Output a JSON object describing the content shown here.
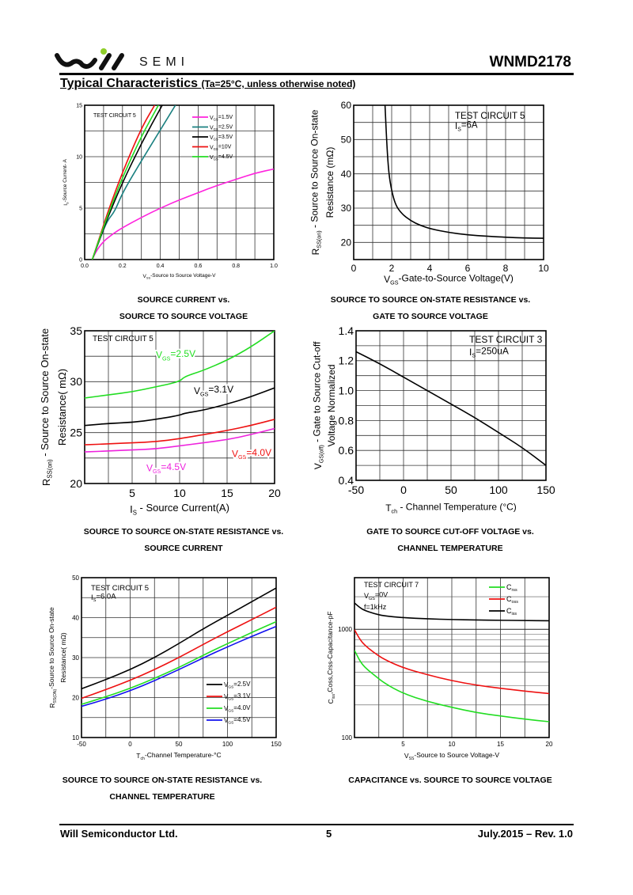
{
  "header": {
    "brand": "SEMI",
    "part_number": "WNMD2178",
    "section_title": "Typical Characteristics",
    "section_condition": "(Ta=25°C, unless otherwise noted)"
  },
  "captions": [
    [
      "SOURCE CURRENT vs.",
      "SOURCE TO SOURCE VOLTAGE"
    ],
    [
      "SOURCE TO SOURCE ON-STATE RESISTANCE vs.",
      "GATE TO SOURCE VOLTAGE"
    ],
    [
      "SOURCE TO SOURCE ON-STATE RESISTANCE vs.",
      "SOURCE CURRENT"
    ],
    [
      "GATE TO SOURCE CUT-OFF VOLTAGE vs.",
      "CHANNEL TEMPERATURE"
    ],
    [
      "SOURCE TO SOURCE ON-STATE RESISTANCE vs.",
      "CHANNEL TEMPERATURE"
    ],
    [
      "CAPACITANCE vs. SOURCE TO SOURCE VOLTAGE",
      ""
    ]
  ],
  "footer": {
    "company": "Will Semiconductor Ltd.",
    "page": "5",
    "revision": "July.2015 – Rev. 1.0"
  },
  "chart_data": [
    {
      "type": "line",
      "title": "",
      "xlabel": "VSS-Source to Source Voltage-V",
      "ylabel": "IS-Source Current- A",
      "xlim": [
        0,
        1.0
      ],
      "ylim": [
        0,
        15
      ],
      "xticks": [
        "0.0",
        "0.2",
        "0.4",
        "0.6",
        "0.8",
        "1.0"
      ],
      "yticks": [
        "0",
        "5",
        "10",
        "15"
      ],
      "grid": true,
      "annotation": "TEST CIRCUIT 5",
      "legend_position": "top-right",
      "series": [
        {
          "name": "VGS=1.5V",
          "color": "#ff22dd",
          "x": [
            0.04,
            0.06,
            0.1,
            0.15,
            0.2,
            0.3,
            0.4,
            0.5,
            0.6,
            0.7,
            0.8,
            0.9,
            1.0
          ],
          "y": [
            0,
            0.8,
            1.8,
            2.5,
            3.1,
            4.1,
            5.0,
            5.8,
            6.5,
            7.2,
            7.8,
            8.4,
            8.8
          ]
        },
        {
          "name": "VGS=2.5V",
          "color": "#1a8080",
          "x": [
            0.04,
            0.08,
            0.12,
            0.16,
            0.2,
            0.3,
            0.4,
            0.48
          ],
          "y": [
            0,
            2.0,
            3.8,
            4.7,
            6.5,
            9.6,
            12.6,
            15
          ]
        },
        {
          "name": "VGS=3.5V",
          "color": "#000000",
          "x": [
            0.04,
            0.08,
            0.12,
            0.2,
            0.3,
            0.41
          ],
          "y": [
            0,
            2.0,
            4.0,
            7.5,
            11.3,
            15
          ]
        },
        {
          "name": "VGS=10V",
          "color": "#ee1111",
          "x": [
            0.04,
            0.08,
            0.12,
            0.2,
            0.3,
            0.37
          ],
          "y": [
            0,
            2.2,
            4.5,
            8.5,
            12.8,
            15
          ]
        },
        {
          "name": "VGS=4.5V",
          "color": "#22dd22",
          "x": [
            0.04,
            0.08,
            0.12,
            0.2,
            0.3,
            0.39
          ],
          "y": [
            0,
            2.1,
            4.2,
            8.0,
            12.0,
            15
          ]
        }
      ]
    },
    {
      "type": "line",
      "title": "",
      "xlabel": "VGS-Gate-to-Source Voltage(V)",
      "ylabel": "RSS(on) - Source to Source On-state Resistance (mΩ)",
      "xlim": [
        0,
        10
      ],
      "ylim": [
        15,
        60
      ],
      "xticks": [
        "0",
        "2",
        "4",
        "6",
        "8",
        "10"
      ],
      "yticks": [
        "20",
        "30",
        "40",
        "50",
        "60"
      ],
      "grid": true,
      "annotation": [
        "TEST CIRCUIT 5",
        "IS=6A"
      ],
      "series": [
        {
          "name": "RSS(on)",
          "color": "#000000",
          "x": [
            1.65,
            1.75,
            1.85,
            2.0,
            2.2,
            2.5,
            3.0,
            3.5,
            4,
            5,
            6,
            7,
            8,
            9,
            10
          ],
          "y": [
            60,
            48,
            40,
            35,
            31,
            28.5,
            26.3,
            25,
            24,
            22.9,
            22.2,
            21.8,
            21.5,
            21.3,
            21.2
          ]
        }
      ]
    },
    {
      "type": "line",
      "title": "",
      "xlabel": "IS - Source Current(A)",
      "ylabel": "RSS(on) - Source to Source On-state Resistance( mΩ)",
      "xlim": [
        0,
        20
      ],
      "ylim": [
        20,
        35
      ],
      "xticks": [
        "5",
        "10",
        "15",
        "20"
      ],
      "yticks": [
        "20",
        "25",
        "30",
        "35"
      ],
      "grid": true,
      "annotation": "TEST CIRCUIT 5",
      "series": [
        {
          "name": "VGS=2.5V",
          "color": "#22dd22",
          "x": [
            0,
            2.5,
            5,
            7.5,
            10,
            10.5,
            12.5,
            15,
            17.5,
            20
          ],
          "y": [
            28.4,
            28.7,
            29.0,
            29.5,
            30.0,
            30.5,
            31.1,
            32.1,
            33.4,
            35.0
          ]
        },
        {
          "name": "VGS=3.1V",
          "color": "#000000",
          "x": [
            0,
            2.5,
            5,
            7.5,
            10,
            10.5,
            12.5,
            15,
            17.5,
            20
          ],
          "y": [
            25.7,
            25.9,
            26.0,
            26.3,
            26.7,
            26.9,
            27.2,
            27.8,
            28.5,
            29.4
          ]
        },
        {
          "name": "VGS=4.0V",
          "color": "#ee1111",
          "x": [
            0,
            2.5,
            5,
            7.5,
            10,
            12.5,
            15,
            17.5,
            20
          ],
          "y": [
            23.8,
            23.9,
            24.0,
            24.1,
            24.4,
            24.8,
            25.2,
            25.7,
            26.3
          ]
        },
        {
          "name": "VGS=4.5V",
          "color": "#ee22dd",
          "x": [
            0,
            2.5,
            5,
            7.5,
            10,
            12.5,
            15,
            17.5,
            20
          ],
          "y": [
            23.1,
            23.2,
            23.3,
            23.4,
            23.7,
            24.0,
            24.3,
            24.8,
            25.4
          ]
        }
      ]
    },
    {
      "type": "line",
      "title": "",
      "xlabel": "Tch - Channel Temperature (°C)",
      "ylabel": "VGS(off) - Gate to Source Cut-off Voltage Normalized",
      "xlim": [
        -50,
        150
      ],
      "ylim": [
        0.4,
        1.4
      ],
      "xticks": [
        "-50",
        "0",
        "50",
        "100",
        "150"
      ],
      "yticks": [
        "0.4",
        "0.6",
        "0.8",
        "1.0",
        "1.2",
        "1.4"
      ],
      "grid": true,
      "annotation": [
        "TEST CIRCUIT 3",
        "IS=250uA"
      ],
      "series": [
        {
          "name": "VGS(off)",
          "color": "#000000",
          "x": [
            -50,
            -25,
            0,
            25,
            50,
            75,
            100,
            125,
            150
          ],
          "y": [
            1.26,
            1.18,
            1.09,
            1.0,
            0.91,
            0.82,
            0.72,
            0.62,
            0.5
          ]
        }
      ]
    },
    {
      "type": "line",
      "title": "",
      "xlabel": "Tch-Channel Temperature-°C",
      "ylabel": "RSS(ON)-Source to Source On-state Resistance( mΩ)",
      "xlim": [
        -50,
        150
      ],
      "ylim": [
        10,
        50
      ],
      "xticks": [
        "-50",
        "0",
        "50",
        "100",
        "150"
      ],
      "yticks": [
        "10",
        "20",
        "30",
        "40",
        "50"
      ],
      "grid": true,
      "annotation": [
        "TEST CIRCUIT 5",
        "IS=6.0A"
      ],
      "legend_position": "bottom-right",
      "series": [
        {
          "name": "VGS=2.5V",
          "color": "#000000",
          "x": [
            -50,
            -25,
            0,
            25,
            50,
            75,
            100,
            125,
            150
          ],
          "y": [
            22.2,
            24.5,
            27.0,
            30.0,
            33.5,
            37.2,
            40.6,
            44.0,
            47.4
          ]
        },
        {
          "name": "VGS=3.1V",
          "color": "#ee1111",
          "x": [
            -50,
            -25,
            0,
            25,
            50,
            75,
            100,
            125,
            150
          ],
          "y": [
            19.8,
            22.0,
            24.3,
            27.0,
            30.0,
            33.3,
            36.5,
            39.5,
            42.6
          ]
        },
        {
          "name": "VGS=4.0V",
          "color": "#22dd22",
          "x": [
            -50,
            -25,
            0,
            25,
            50,
            75,
            100,
            125,
            150
          ],
          "y": [
            18.3,
            20.2,
            22.3,
            24.8,
            27.5,
            30.6,
            33.5,
            36.3,
            39.0
          ]
        },
        {
          "name": "VGS=4.5V",
          "color": "#1111ee",
          "x": [
            -50,
            -25,
            0,
            25,
            50,
            75,
            100,
            125,
            150
          ],
          "y": [
            17.8,
            19.6,
            21.7,
            24.2,
            27.0,
            29.9,
            32.7,
            35.3,
            37.8
          ]
        }
      ]
    },
    {
      "type": "line",
      "title": "",
      "xlabel": "VSS-Source to Source Voltage-V",
      "ylabel": "Ciss,Coss,Crss-Capacitance-pF",
      "xscale": "linear",
      "yscale": "log",
      "xlim": [
        0,
        20
      ],
      "ylim": [
        100,
        3000
      ],
      "xticks": [
        "5",
        "10",
        "15",
        "20"
      ],
      "yticks": [
        "100",
        "1000"
      ],
      "grid": true,
      "annotation": [
        "TEST CIRCUIT 7",
        "VGS=0V",
        "f=1kHz"
      ],
      "legend_position": "top-right",
      "series": [
        {
          "name": "Crss",
          "color": "#22dd22",
          "x": [
            0,
            0.5,
            1,
            2,
            3,
            5,
            7.5,
            10,
            12.5,
            15,
            17.5,
            20
          ],
          "y": [
            640,
            520,
            450,
            380,
            320,
            255,
            215,
            190,
            170,
            158,
            148,
            140
          ]
        },
        {
          "name": "Coss",
          "color": "#ee1111",
          "x": [
            0,
            0.5,
            1,
            2,
            3,
            5,
            7.5,
            10,
            12.5,
            15,
            17.5,
            20
          ],
          "y": [
            990,
            820,
            720,
            610,
            530,
            440,
            380,
            335,
            305,
            285,
            268,
            255
          ]
        },
        {
          "name": "Ciss",
          "color": "#000000",
          "x": [
            0,
            0.5,
            1,
            2,
            3,
            5,
            7.5,
            10,
            12.5,
            15,
            17.5,
            20
          ],
          "y": [
            1750,
            1600,
            1500,
            1400,
            1330,
            1280,
            1250,
            1230,
            1220,
            1210,
            1205,
            1200
          ]
        }
      ]
    }
  ]
}
